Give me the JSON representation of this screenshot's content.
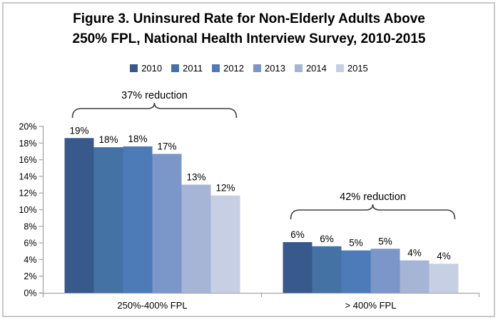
{
  "figure": {
    "title_line1": "Figure 3. Uninsured Rate for Non-Elderly Adults Above",
    "title_line2": "250% FPL, National Health Interview Survey, 2010-2015"
  },
  "chart_data": {
    "type": "bar",
    "title": "Figure 3. Uninsured Rate for Non-Elderly Adults Above 250% FPL, National Health Interview Survey, 2010-2015",
    "categories": [
      "250%-400% FPL",
      "> 400% FPL"
    ],
    "series": [
      {
        "name": "2010",
        "color": "#37598C",
        "values": [
          18.6,
          6.1
        ],
        "data_labels": [
          "19%",
          "6%"
        ]
      },
      {
        "name": "2011",
        "color": "#4472A4",
        "values": [
          17.5,
          5.6
        ],
        "data_labels": [
          "18%",
          "6%"
        ]
      },
      {
        "name": "2012",
        "color": "#4C7BB8",
        "values": [
          17.6,
          5.1
        ],
        "data_labels": [
          "18%",
          "5%"
        ]
      },
      {
        "name": "2013",
        "color": "#7B96C9",
        "values": [
          16.7,
          5.3
        ],
        "data_labels": [
          "17%",
          "5%"
        ]
      },
      {
        "name": "2014",
        "color": "#A6B5D6",
        "values": [
          13.0,
          3.9
        ],
        "data_labels": [
          "13%",
          "4%"
        ]
      },
      {
        "name": "2015",
        "color": "#C6CFE4",
        "values": [
          11.7,
          3.5
        ],
        "data_labels": [
          "12%",
          "4%"
        ]
      }
    ],
    "ylim": [
      0,
      20
    ],
    "ytick_labels": [
      "0%",
      "2%",
      "4%",
      "6%",
      "8%",
      "10%",
      "12%",
      "14%",
      "16%",
      "18%",
      "20%"
    ],
    "grid": false,
    "legend_position": "top",
    "axis_color": "#A6A6A6",
    "annotation_color": "#404040",
    "annotations": [
      {
        "text": "37% reduction",
        "category_index": 0
      },
      {
        "text": "42% reduction",
        "category_index": 1
      }
    ]
  }
}
